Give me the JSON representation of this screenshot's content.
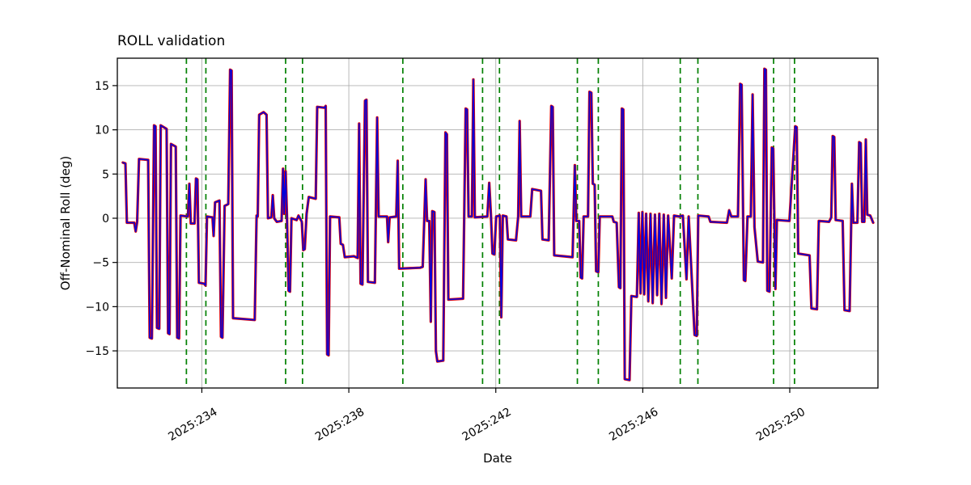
{
  "figure": {
    "background": "#ffffff",
    "title": "ROLL validation",
    "xlabel": "Date",
    "ylabel": "Off-Nominal Roll (deg)"
  },
  "chart_data": {
    "type": "line",
    "title": "ROLL validation",
    "xlabel": "Date",
    "ylabel": "Off-Nominal Roll (deg)",
    "grid": true,
    "grid_color": "#b0b0b0",
    "axis_color": "#000000",
    "xlim": [
      231.7,
      252.4
    ],
    "ylim": [
      -19.2,
      18.1
    ],
    "x_tick_values": [
      234,
      238,
      242,
      246,
      250
    ],
    "x_tick_labels": [
      "2025:234",
      "2025:238",
      "2025:242",
      "2025:246",
      "2025:250"
    ],
    "y_tick_values": [
      -15,
      -10,
      -5,
      0,
      5,
      10,
      15
    ],
    "y_tick_labels": [
      "−15",
      "−10",
      "−5",
      "0",
      "5",
      "10",
      "15"
    ],
    "event_lines": {
      "color": "#008000",
      "dash": "7 5",
      "x_values": [
        233.58,
        234.11,
        236.28,
        236.74,
        239.47,
        241.64,
        242.1,
        244.22,
        244.79,
        247.02,
        247.5,
        249.56,
        250.13
      ]
    },
    "series": [
      {
        "name": "red",
        "color": "#e60000",
        "width": 3.2
      },
      {
        "name": "blue",
        "color": "#0000dd",
        "width": 1.6
      }
    ],
    "points": [
      [
        231.85,
        6.3
      ],
      [
        231.92,
        6.2
      ],
      [
        231.96,
        -0.5
      ],
      [
        232.16,
        -0.5
      ],
      [
        232.2,
        -1.5
      ],
      [
        232.24,
        -0.4
      ],
      [
        232.29,
        6.7
      ],
      [
        232.54,
        6.6
      ],
      [
        232.58,
        -13.5
      ],
      [
        232.64,
        -13.6
      ],
      [
        232.7,
        10.5
      ],
      [
        232.74,
        10.4
      ],
      [
        232.78,
        -12.4
      ],
      [
        232.84,
        -12.5
      ],
      [
        232.88,
        10.5
      ],
      [
        233.04,
        10.1
      ],
      [
        233.08,
        -13.0
      ],
      [
        233.12,
        -13.1
      ],
      [
        233.16,
        8.4
      ],
      [
        233.29,
        8.1
      ],
      [
        233.33,
        -13.5
      ],
      [
        233.38,
        -13.6
      ],
      [
        233.42,
        0.3
      ],
      [
        233.62,
        0.2
      ],
      [
        233.66,
        3.9
      ],
      [
        233.7,
        -0.6
      ],
      [
        233.8,
        -0.6
      ],
      [
        233.84,
        4.5
      ],
      [
        233.88,
        4.4
      ],
      [
        233.92,
        -7.3
      ],
      [
        234.06,
        -7.4
      ],
      [
        234.1,
        -7.6
      ],
      [
        234.14,
        0.2
      ],
      [
        234.29,
        0.1
      ],
      [
        234.32,
        -2.0
      ],
      [
        234.36,
        1.8
      ],
      [
        234.48,
        2.0
      ],
      [
        234.52,
        -13.4
      ],
      [
        234.56,
        -13.5
      ],
      [
        234.62,
        1.4
      ],
      [
        234.72,
        1.6
      ],
      [
        234.77,
        16.8
      ],
      [
        234.81,
        16.7
      ],
      [
        234.85,
        -11.3
      ],
      [
        235.44,
        -11.5
      ],
      [
        235.49,
        0.3
      ],
      [
        235.52,
        0.2
      ],
      [
        235.56,
        11.7
      ],
      [
        235.68,
        12.0
      ],
      [
        235.76,
        11.7
      ],
      [
        235.8,
        0.0
      ],
      [
        235.89,
        0.1
      ],
      [
        235.93,
        2.6
      ],
      [
        235.97,
        0.0
      ],
      [
        236.04,
        -0.4
      ],
      [
        236.17,
        -0.3
      ],
      [
        236.21,
        5.6
      ],
      [
        236.24,
        0.5
      ],
      [
        236.28,
        5.3
      ],
      [
        236.32,
        -0.3
      ],
      [
        236.36,
        -8.2
      ],
      [
        236.4,
        -8.3
      ],
      [
        236.44,
        0.0
      ],
      [
        236.58,
        -0.2
      ],
      [
        236.63,
        0.3
      ],
      [
        236.72,
        -0.4
      ],
      [
        236.76,
        -3.6
      ],
      [
        236.8,
        -3.5
      ],
      [
        236.85,
        0.5
      ],
      [
        236.91,
        2.4
      ],
      [
        237.1,
        2.2
      ],
      [
        237.14,
        12.6
      ],
      [
        237.34,
        12.5
      ],
      [
        237.37,
        12.7
      ],
      [
        237.41,
        -15.4
      ],
      [
        237.45,
        -15.5
      ],
      [
        237.49,
        0.2
      ],
      [
        237.74,
        0.1
      ],
      [
        237.78,
        -2.9
      ],
      [
        237.84,
        -3.0
      ],
      [
        237.89,
        -4.4
      ],
      [
        238.14,
        -4.3
      ],
      [
        238.24,
        -4.5
      ],
      [
        238.28,
        10.7
      ],
      [
        238.32,
        -7.4
      ],
      [
        238.37,
        -7.5
      ],
      [
        238.44,
        13.3
      ],
      [
        238.48,
        13.4
      ],
      [
        238.52,
        -7.2
      ],
      [
        238.71,
        -7.3
      ],
      [
        238.77,
        11.4
      ],
      [
        238.81,
        0.2
      ],
      [
        239.04,
        0.2
      ],
      [
        239.07,
        -2.7
      ],
      [
        239.11,
        0.1
      ],
      [
        239.29,
        0.2
      ],
      [
        239.33,
        6.5
      ],
      [
        239.37,
        -5.7
      ],
      [
        239.94,
        -5.6
      ],
      [
        240.01,
        -5.5
      ],
      [
        240.09,
        4.4
      ],
      [
        240.13,
        -0.3
      ],
      [
        240.19,
        -0.3
      ],
      [
        240.23,
        -11.7
      ],
      [
        240.27,
        0.8
      ],
      [
        240.33,
        0.7
      ],
      [
        240.37,
        -15.0
      ],
      [
        240.41,
        -16.2
      ],
      [
        240.57,
        -16.1
      ],
      [
        240.63,
        9.7
      ],
      [
        240.67,
        9.5
      ],
      [
        240.71,
        -9.2
      ],
      [
        241.11,
        -9.1
      ],
      [
        241.18,
        12.4
      ],
      [
        241.22,
        12.3
      ],
      [
        241.26,
        0.2
      ],
      [
        241.35,
        0.2
      ],
      [
        241.39,
        15.7
      ],
      [
        241.43,
        0.1
      ],
      [
        241.77,
        0.2
      ],
      [
        241.82,
        4.0
      ],
      [
        241.87,
        0.2
      ],
      [
        241.91,
        -4.0
      ],
      [
        241.96,
        -4.1
      ],
      [
        242.01,
        0.2
      ],
      [
        242.11,
        0.3
      ],
      [
        242.15,
        -11.2
      ],
      [
        242.19,
        0.3
      ],
      [
        242.29,
        0.2
      ],
      [
        242.33,
        -2.4
      ],
      [
        242.55,
        -2.5
      ],
      [
        242.61,
        0.2
      ],
      [
        242.65,
        11.0
      ],
      [
        242.69,
        0.2
      ],
      [
        242.94,
        0.2
      ],
      [
        242.99,
        3.3
      ],
      [
        243.23,
        3.1
      ],
      [
        243.27,
        -2.4
      ],
      [
        243.44,
        -2.5
      ],
      [
        243.51,
        12.7
      ],
      [
        243.55,
        12.6
      ],
      [
        243.59,
        -4.2
      ],
      [
        244.09,
        -4.4
      ],
      [
        244.15,
        6.0
      ],
      [
        244.19,
        -0.3
      ],
      [
        244.27,
        -0.3
      ],
      [
        244.31,
        -6.7
      ],
      [
        244.35,
        -6.8
      ],
      [
        244.39,
        0.2
      ],
      [
        244.51,
        0.2
      ],
      [
        244.55,
        14.3
      ],
      [
        244.6,
        14.2
      ],
      [
        244.64,
        3.9
      ],
      [
        244.69,
        3.8
      ],
      [
        244.73,
        -6.0
      ],
      [
        244.79,
        -6.1
      ],
      [
        244.83,
        0.2
      ],
      [
        245.17,
        0.2
      ],
      [
        245.21,
        -0.4
      ],
      [
        245.29,
        -0.5
      ],
      [
        245.35,
        -7.8
      ],
      [
        245.39,
        -7.9
      ],
      [
        245.43,
        12.4
      ],
      [
        245.47,
        12.3
      ],
      [
        245.51,
        -18.2
      ],
      [
        245.64,
        -18.3
      ],
      [
        245.69,
        -8.8
      ],
      [
        245.84,
        -8.9
      ],
      [
        245.89,
        0.6
      ],
      [
        245.94,
        -8.5
      ],
      [
        245.99,
        0.7
      ],
      [
        246.04,
        -8.6
      ],
      [
        246.09,
        0.5
      ],
      [
        246.15,
        -9.4
      ],
      [
        246.21,
        0.5
      ],
      [
        246.27,
        -9.6
      ],
      [
        246.33,
        0.4
      ],
      [
        246.39,
        -8.7
      ],
      [
        246.45,
        0.5
      ],
      [
        246.51,
        -9.7
      ],
      [
        246.57,
        0.4
      ],
      [
        246.63,
        -9.0
      ],
      [
        246.69,
        0.3
      ],
      [
        246.79,
        -6.8
      ],
      [
        246.85,
        0.3
      ],
      [
        246.99,
        0.2
      ],
      [
        247.09,
        0.3
      ],
      [
        247.19,
        -6.9
      ],
      [
        247.25,
        0.2
      ],
      [
        247.41,
        -13.2
      ],
      [
        247.47,
        -13.3
      ],
      [
        247.51,
        0.3
      ],
      [
        247.79,
        0.2
      ],
      [
        247.84,
        -0.4
      ],
      [
        248.29,
        -0.5
      ],
      [
        248.35,
        0.9
      ],
      [
        248.41,
        0.2
      ],
      [
        248.59,
        0.2
      ],
      [
        248.65,
        15.2
      ],
      [
        248.69,
        15.1
      ],
      [
        248.75,
        -7.0
      ],
      [
        248.79,
        -7.1
      ],
      [
        248.85,
        0.2
      ],
      [
        248.94,
        0.2
      ],
      [
        248.99,
        14.0
      ],
      [
        249.04,
        -1.0
      ],
      [
        249.13,
        -4.9
      ],
      [
        249.27,
        -5.0
      ],
      [
        249.31,
        16.9
      ],
      [
        249.35,
        16.8
      ],
      [
        249.39,
        -8.2
      ],
      [
        249.45,
        -8.3
      ],
      [
        249.51,
        8.0
      ],
      [
        249.55,
        7.9
      ],
      [
        249.61,
        -8.0
      ],
      [
        249.65,
        -0.2
      ],
      [
        249.99,
        -0.3
      ],
      [
        250.15,
        10.4
      ],
      [
        250.19,
        10.3
      ],
      [
        250.23,
        -4.0
      ],
      [
        250.54,
        -4.2
      ],
      [
        250.59,
        -10.2
      ],
      [
        250.74,
        -10.3
      ],
      [
        250.79,
        -0.3
      ],
      [
        251.07,
        -0.4
      ],
      [
        251.13,
        0.1
      ],
      [
        251.17,
        9.3
      ],
      [
        251.21,
        9.2
      ],
      [
        251.25,
        -0.2
      ],
      [
        251.44,
        -0.3
      ],
      [
        251.49,
        -10.4
      ],
      [
        251.63,
        -10.5
      ],
      [
        251.69,
        3.9
      ],
      [
        251.73,
        -0.5
      ],
      [
        251.84,
        -0.5
      ],
      [
        251.89,
        8.6
      ],
      [
        251.93,
        8.5
      ],
      [
        251.97,
        -0.4
      ],
      [
        252.03,
        -0.4
      ],
      [
        252.07,
        8.9
      ],
      [
        252.11,
        0.4
      ],
      [
        252.19,
        0.3
      ],
      [
        252.27,
        -0.5
      ]
    ]
  }
}
